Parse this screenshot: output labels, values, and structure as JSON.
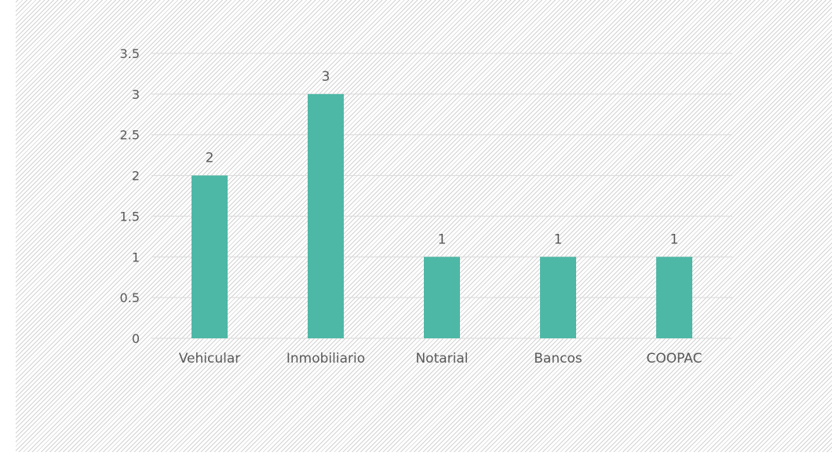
{
  "chart_data": {
    "type": "bar",
    "categories": [
      "Vehicular",
      "Inmobiliario",
      "Notarial",
      "Bancos",
      "COOPAC"
    ],
    "series": [
      {
        "values": [
          2,
          3,
          1,
          1,
          1
        ]
      }
    ],
    "data_labels": [
      "2",
      "3",
      "1",
      "1",
      "1"
    ],
    "y_ticks": [
      "0",
      "0.5",
      "1",
      "1.5",
      "2",
      "2.5",
      "3",
      "3.5"
    ],
    "y_tick_values": [
      0,
      0.5,
      1,
      1.5,
      2,
      2.5,
      3,
      3.5
    ],
    "ylim": [
      0,
      3.5
    ],
    "title": "",
    "xlabel": "",
    "ylabel": "",
    "grid": true,
    "legend": "none",
    "background": "diagonal-hatch",
    "colors": {
      "bar": "#4db8a6",
      "gridline": "#d9d9d9",
      "text": "#595959"
    }
  }
}
